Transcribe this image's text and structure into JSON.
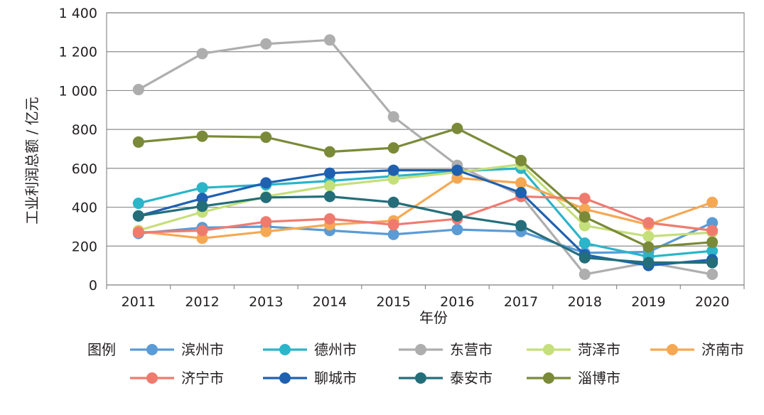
{
  "chart_data": {
    "type": "line",
    "title": "",
    "xlabel": "年份",
    "ylabel": "工业利润总额 / 亿元",
    "ylim": [
      0,
      1400
    ],
    "yticks": [
      0,
      200,
      400,
      600,
      800,
      1000,
      1200,
      1400
    ],
    "ytick_labels": [
      "0",
      "200",
      "400",
      "600",
      "800",
      "1 000",
      "1 200",
      "1 400"
    ],
    "categories": [
      "2011",
      "2012",
      "2013",
      "2014",
      "2015",
      "2016",
      "2017",
      "2018",
      "2019",
      "2020"
    ],
    "grid": true,
    "legend_title": "图例",
    "legend_position": "bottom",
    "series": [
      {
        "name": "滨州市",
        "color": "#5b9bd5",
        "values": [
          265,
          295,
          300,
          280,
          260,
          285,
          275,
          165,
          170,
          320
        ]
      },
      {
        "name": "德州市",
        "color": "#2bb5c8",
        "values": [
          420,
          500,
          515,
          535,
          560,
          585,
          600,
          215,
          145,
          175
        ]
      },
      {
        "name": "东营市",
        "color": "#aeaeae",
        "values": [
          1005,
          1190,
          1240,
          1260,
          865,
          615,
          460,
          55,
          115,
          55
        ]
      },
      {
        "name": "菏泽市",
        "color": "#c5df7a",
        "values": [
          280,
          375,
          455,
          510,
          545,
          580,
          620,
          305,
          250,
          270
        ]
      },
      {
        "name": "济南市",
        "color": "#f5a853",
        "values": [
          275,
          240,
          275,
          310,
          330,
          550,
          525,
          390,
          310,
          425
        ]
      },
      {
        "name": "济宁市",
        "color": "#ef7b6f",
        "values": [
          270,
          280,
          325,
          340,
          310,
          340,
          455,
          445,
          320,
          280
        ]
      },
      {
        "name": "聊城市",
        "color": "#1f61b0",
        "values": [
          355,
          445,
          525,
          575,
          590,
          590,
          475,
          155,
          100,
          130
        ]
      },
      {
        "name": "泰安市",
        "color": "#246e7a",
        "values": [
          355,
          405,
          450,
          455,
          425,
          355,
          305,
          140,
          115,
          115
        ]
      },
      {
        "name": "淄博市",
        "color": "#7a8a38",
        "values": [
          735,
          765,
          760,
          685,
          705,
          805,
          640,
          350,
          195,
          220
        ]
      }
    ]
  }
}
